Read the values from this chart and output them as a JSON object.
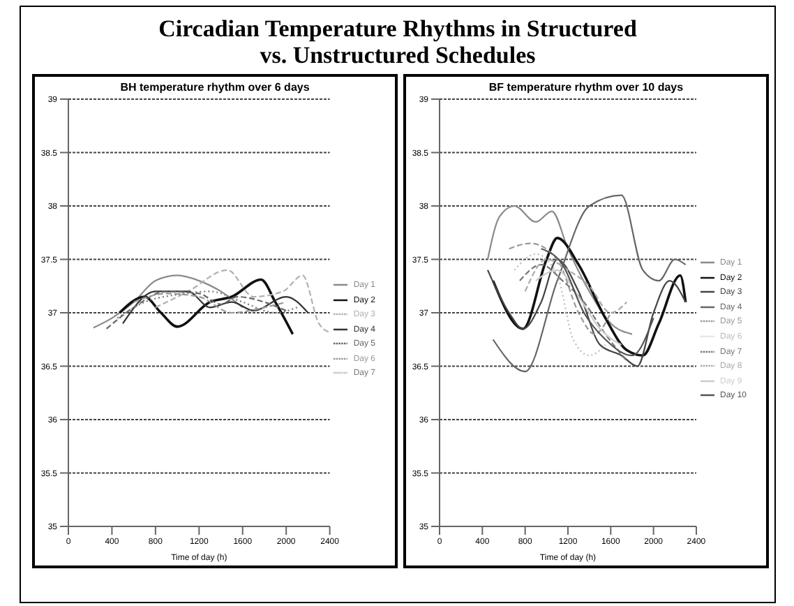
{
  "chart_data": [
    {
      "type": "line",
      "title": "BH temperature rhythm over 6 days",
      "xlabel": "Time of day (h)",
      "annotations": [
        "Circadian Temperature Rhythms in Structured vs. Unstructured Schedules"
      ],
      "xlim": [
        0,
        2400
      ],
      "xticks": [
        0,
        400,
        800,
        1200,
        1600,
        2000,
        2400
      ],
      "ylim": [
        35,
        39
      ],
      "yticks": [
        35,
        35.5,
        36,
        36.5,
        37,
        37.5,
        38,
        38.5,
        39
      ],
      "grid": "y",
      "legend": "right",
      "marker": "none",
      "series": [
        {
          "name": "Day 1",
          "color": "#8a8a8a",
          "x": [
            230,
            400,
            600,
            800,
            1000,
            1200,
            1400,
            1600
          ],
          "values": [
            36.86,
            36.95,
            37.1,
            37.3,
            37.35,
            37.3,
            37.2,
            37.05
          ]
        },
        {
          "name": "Day 2",
          "color": "#111111",
          "x": [
            470,
            700,
            850,
            1000,
            1300,
            1500,
            1770,
            1900,
            2060
          ],
          "values": [
            37.0,
            37.15,
            37.0,
            36.87,
            37.1,
            37.15,
            37.31,
            37.1,
            36.8
          ]
        },
        {
          "name": "Day 3",
          "color": "#b0b0b0",
          "line_style": "dashed",
          "x": [
            800,
            1100,
            1460,
            1700,
            1970,
            2150,
            2300,
            2390
          ],
          "values": [
            37.05,
            37.2,
            37.4,
            37.15,
            37.2,
            37.35,
            36.9,
            36.82
          ]
        },
        {
          "name": "Day 4",
          "color": "#333333",
          "x": [
            500,
            800,
            1100,
            1300,
            1500,
            1700,
            2000,
            2200
          ],
          "values": [
            36.9,
            37.2,
            37.2,
            37.05,
            37.1,
            37.02,
            37.15,
            37.0
          ]
        },
        {
          "name": "Day 5",
          "color": "#666666",
          "line_style": "dashed",
          "x": [
            350,
            600,
            900,
            1200,
            1400,
            1550,
            1800,
            2000
          ],
          "values": [
            36.85,
            37.05,
            37.2,
            37.18,
            37.08,
            37.15,
            37.1,
            37.02
          ]
        },
        {
          "name": "Day 6",
          "color": "#999999",
          "line_style": "dashed",
          "x": [
            600,
            900,
            1200,
            1500,
            1800,
            2000
          ],
          "values": [
            37.1,
            37.18,
            37.15,
            37.0,
            37.05,
            37.1
          ]
        },
        {
          "name": "Day 7",
          "color": "#777777",
          "line_style": "dotted",
          "x": [
            450,
            700,
            1000,
            1300,
            1600,
            1900,
            2100
          ],
          "values": [
            36.95,
            37.1,
            37.17,
            37.2,
            37.1,
            37.0,
            37.05
          ]
        }
      ]
    },
    {
      "type": "line",
      "title": "BF temperature rhythm over 10 days",
      "xlabel": "Time of day (h)",
      "xlim": [
        0,
        2400
      ],
      "xticks": [
        0,
        400,
        800,
        1200,
        1600,
        2000,
        2400
      ],
      "ylim": [
        35,
        39
      ],
      "yticks": [
        35,
        35.5,
        36,
        36.5,
        37,
        37.5,
        38,
        38.5,
        39
      ],
      "grid": "y",
      "legend": "right",
      "marker": "none",
      "series": [
        {
          "name": "Day 1",
          "color": "#8a8a8a",
          "x": [
            450,
            560,
            700,
            900,
            1050,
            1200,
            1400,
            1600,
            1800
          ],
          "values": [
            37.5,
            37.9,
            38.0,
            37.85,
            37.95,
            37.6,
            37.2,
            36.9,
            36.8
          ]
        },
        {
          "name": "Day 2",
          "color": "#111111",
          "x": [
            500,
            780,
            1000,
            1100,
            1300,
            1550,
            1750,
            1900,
            2050,
            2250,
            2300
          ],
          "values": [
            37.3,
            36.85,
            37.5,
            37.7,
            37.45,
            36.95,
            36.65,
            36.6,
            36.9,
            37.35,
            37.1
          ]
        },
        {
          "name": "Day 3",
          "color": "#444444",
          "x": [
            450,
            650,
            780,
            950,
            1100,
            1300,
            1500,
            1700,
            1850,
            2000,
            2150,
            2300
          ],
          "values": [
            37.4,
            37.0,
            36.85,
            37.1,
            37.5,
            37.2,
            36.7,
            36.6,
            36.5,
            37.0,
            37.3,
            37.1
          ]
        },
        {
          "name": "Day 4",
          "color": "#666666",
          "x": [
            500,
            800,
            1100,
            1400,
            1700,
            1900,
            2050,
            2200,
            2300
          ],
          "values": [
            36.75,
            36.45,
            37.3,
            38.0,
            38.1,
            37.4,
            37.3,
            37.5,
            37.45
          ]
        },
        {
          "name": "Day 5",
          "color": "#999999",
          "line_style": "dashed",
          "x": [
            650,
            850,
            1100,
            1300,
            1450,
            1600
          ],
          "values": [
            37.6,
            37.65,
            37.5,
            37.0,
            36.8,
            37.0
          ]
        },
        {
          "name": "Day 6",
          "color": "#bbbbbb",
          "line_style": "dotted",
          "x": [
            700,
            900,
            1100,
            1250,
            1400,
            1550
          ],
          "values": [
            37.4,
            37.55,
            37.35,
            36.75,
            36.6,
            36.7
          ]
        },
        {
          "name": "Day 7",
          "color": "#777777",
          "line_style": "dashed",
          "x": [
            750,
            950,
            1150,
            1350,
            1550,
            1750
          ],
          "values": [
            37.3,
            37.45,
            37.3,
            37.1,
            36.8,
            36.55
          ]
        },
        {
          "name": "Day 8",
          "color": "#aaaaaa",
          "line_style": "dashed",
          "x": [
            800,
            1000,
            1200,
            1400,
            1600,
            1750
          ],
          "values": [
            37.2,
            37.5,
            37.4,
            37.25,
            37.0,
            37.1
          ]
        },
        {
          "name": "Day 9",
          "color": "#cccccc",
          "x": [
            900,
            1100,
            1300,
            1500,
            1700
          ],
          "values": [
            37.3,
            37.4,
            37.15,
            36.85,
            36.7
          ]
        },
        {
          "name": "Day 10",
          "color": "#555555",
          "x": [
            950,
            1150,
            1350,
            1550,
            1800,
            2000
          ],
          "values": [
            37.6,
            37.45,
            37.0,
            36.75,
            36.6,
            36.95
          ]
        }
      ]
    }
  ]
}
